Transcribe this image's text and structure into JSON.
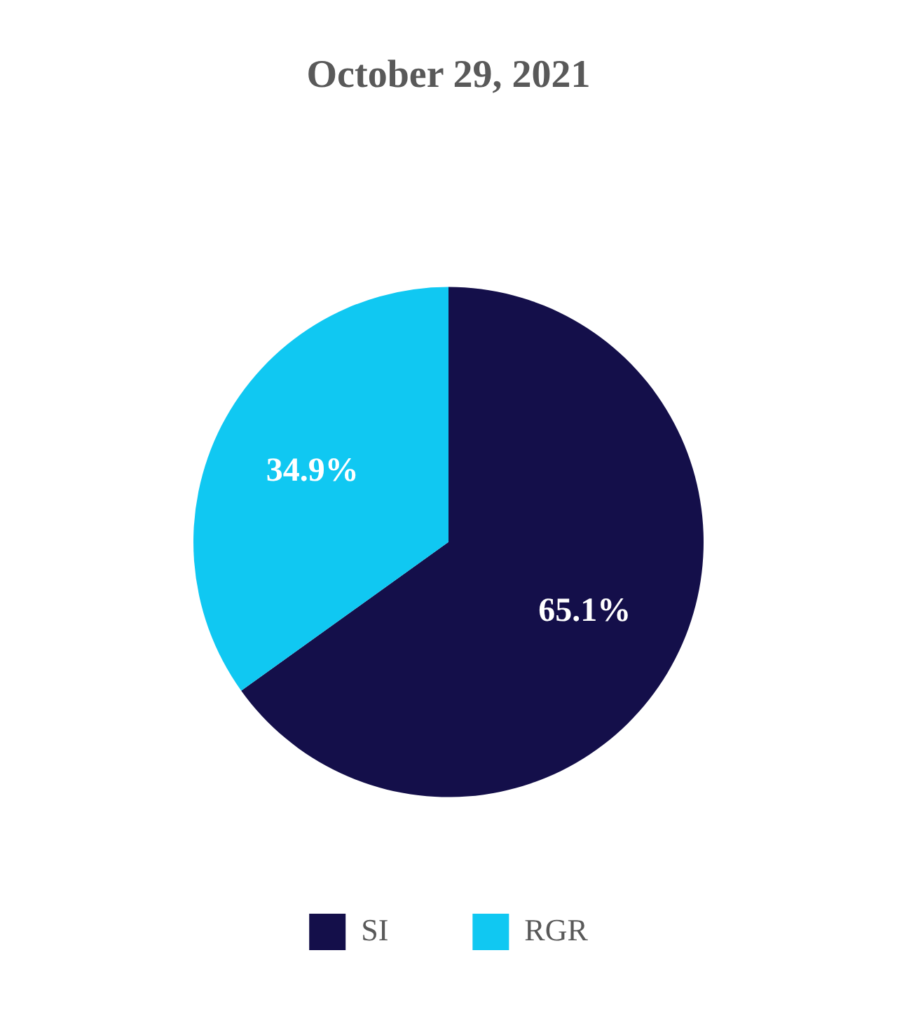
{
  "chart_data": {
    "type": "pie",
    "title": "October 29, 2021",
    "categories": [
      "SI",
      "RGR"
    ],
    "values": [
      65.1,
      34.9
    ],
    "colors": [
      "#140f4a",
      "#10c8f2"
    ],
    "value_labels": [
      "65.1%",
      "34.9%"
    ],
    "legend": "bottom"
  }
}
